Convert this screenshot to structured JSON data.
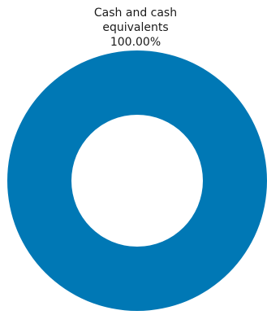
{
  "chart_data": {
    "type": "pie",
    "variant": "donut",
    "slices": [
      {
        "label_lines": [
          "Cash and cash",
          "equivalents"
        ],
        "percent_label": "100.00%",
        "value": 100.0,
        "color": "#0078b5"
      }
    ],
    "legend": "none",
    "background": "#ffffff"
  }
}
